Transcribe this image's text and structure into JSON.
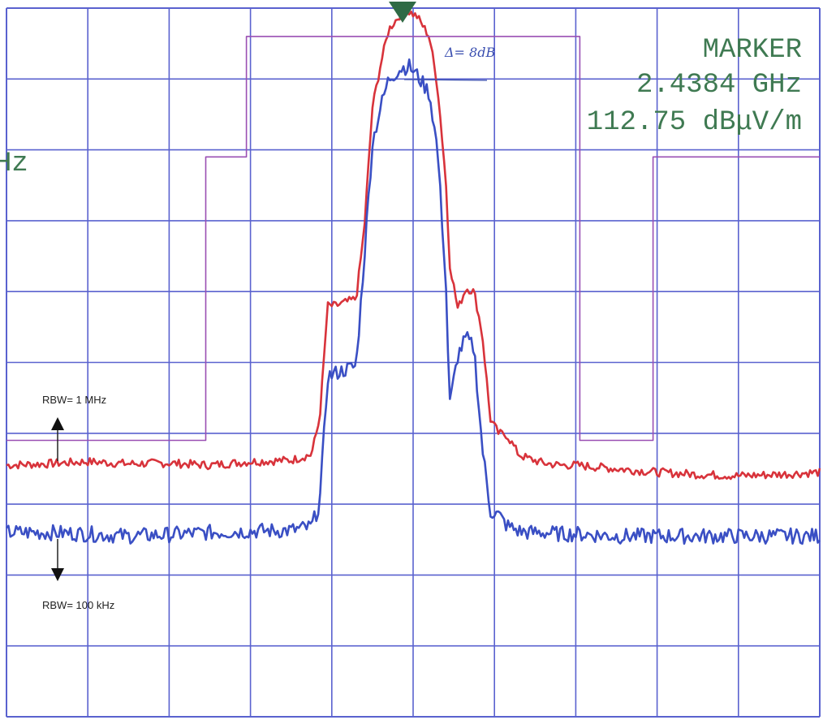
{
  "marker": {
    "title": "MARKER",
    "frequency": "2.4384 GHz",
    "level": "112.75 dBμV/m",
    "left_fragment": "Hz"
  },
  "annotations": {
    "delta": "Δ= 8dB",
    "rbw_1mhz": "RBW= 1 MHz",
    "rbw_100khz": "RBW= 100 kHz"
  },
  "colors": {
    "grid": "#5a62cf",
    "frame": "#5a62cf",
    "series_1mhz": "#d8333b",
    "series_100khz": "#3a4fc4",
    "limit_line": "#9a4fb3",
    "marker": "#2f6a45",
    "text": "#3f7a52"
  },
  "chart_data": {
    "type": "line",
    "title": "",
    "xlabel": "",
    "ylabel": "",
    "grid": true,
    "grid_divisions": {
      "x": 10,
      "y": 10
    },
    "xlim": [
      0,
      10
    ],
    "ylim": [
      0,
      10
    ],
    "marker_icon": "triangle-down-marker",
    "series": [
      {
        "name": "RBW= 1 MHz",
        "x": [
          0.0,
          0.5,
          1.0,
          1.5,
          2.0,
          2.5,
          3.0,
          3.5,
          3.75,
          3.85,
          3.95,
          4.05,
          4.3,
          4.4,
          4.5,
          4.6,
          4.7,
          4.85,
          4.95,
          5.05,
          5.2,
          5.3,
          5.4,
          5.45,
          5.55,
          5.65,
          5.75,
          5.85,
          5.95,
          6.05,
          6.15,
          6.3,
          6.4,
          6.6,
          6.8,
          7.0,
          7.5,
          8.0,
          8.5,
          9.0,
          9.5,
          10.0
        ],
        "y": [
          3.55,
          3.57,
          3.6,
          3.57,
          3.58,
          3.55,
          3.6,
          3.62,
          3.7,
          4.2,
          5.8,
          5.8,
          5.9,
          6.9,
          8.6,
          9.2,
          9.7,
          9.92,
          9.95,
          9.88,
          9.6,
          8.9,
          7.6,
          6.4,
          5.75,
          6.05,
          6.0,
          5.4,
          4.2,
          4.0,
          3.98,
          3.7,
          3.65,
          3.58,
          3.55,
          3.55,
          3.5,
          3.45,
          3.42,
          3.4,
          3.42,
          3.45
        ]
      },
      {
        "name": "RBW= 100 kHz",
        "x": [
          0.0,
          0.5,
          1.0,
          1.5,
          2.0,
          2.5,
          3.0,
          3.5,
          3.75,
          3.85,
          3.95,
          4.05,
          4.3,
          4.4,
          4.5,
          4.6,
          4.7,
          4.85,
          4.95,
          5.05,
          5.2,
          5.3,
          5.4,
          5.45,
          5.55,
          5.65,
          5.75,
          5.85,
          5.95,
          6.05,
          6.15,
          6.3,
          6.4,
          6.6,
          6.8,
          7.0,
          7.5,
          8.0,
          8.5,
          9.0,
          9.5,
          10.0
        ],
        "y": [
          2.6,
          2.6,
          2.58,
          2.55,
          2.57,
          2.6,
          2.62,
          2.63,
          2.68,
          3.0,
          4.8,
          4.85,
          4.95,
          6.5,
          8.1,
          8.6,
          9.0,
          9.15,
          9.18,
          9.05,
          8.8,
          8.0,
          6.2,
          4.4,
          5.1,
          5.35,
          5.2,
          3.8,
          2.9,
          2.85,
          2.7,
          2.62,
          2.6,
          2.6,
          2.58,
          2.58,
          2.55,
          2.55,
          2.55,
          2.55,
          2.55,
          2.55
        ]
      },
      {
        "name": "",
        "x": [
          0.0,
          2.45,
          2.45,
          2.95,
          2.95,
          7.05,
          7.05,
          7.95,
          7.95,
          10.0
        ],
        "y": [
          3.9,
          3.9,
          7.9,
          7.9,
          9.6,
          9.6,
          3.9,
          3.9,
          7.9,
          7.9
        ]
      }
    ]
  }
}
